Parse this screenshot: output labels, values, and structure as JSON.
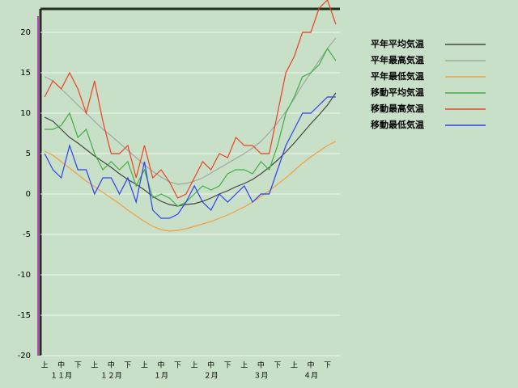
{
  "chart_data": {
    "type": "line",
    "categories": [
      "上",
      null,
      "中",
      null,
      "下",
      null,
      "上",
      null,
      "中",
      null,
      "下",
      null,
      "上",
      null,
      "中",
      null,
      "下",
      null,
      "上",
      null,
      "中",
      null,
      "下",
      null,
      "上",
      null,
      "中",
      null,
      "下",
      null,
      "上",
      null,
      "中",
      null,
      "下",
      null
    ],
    "months": [
      "１１月",
      "１２月",
      "１月",
      "２月",
      "３月",
      "４月"
    ],
    "ylim": [
      -20,
      23
    ],
    "yticks": [
      -20,
      -15,
      -10,
      -5,
      0,
      5,
      10,
      15,
      20
    ],
    "grid": true,
    "legend": "right",
    "series": [
      {
        "name": "平年平均気温",
        "color": "#404840",
        "values": [
          9.5,
          9,
          8,
          7,
          6.3,
          5.5,
          4.7,
          4,
          3.3,
          2.5,
          1.8,
          1.2,
          0.5,
          -0.3,
          -0.9,
          -1.3,
          -1.5,
          -1.3,
          -1.2,
          -0.9,
          -0.5,
          0,
          0.4,
          0.9,
          1.3,
          1.8,
          2.5,
          3.3,
          4.2,
          5.2,
          6.3,
          7.5,
          8.7,
          9.8,
          11,
          12.5
        ]
      },
      {
        "name": "平年最高気温",
        "color": "#a0a8a0",
        "values": [
          14.5,
          14,
          13,
          12,
          11,
          10,
          9,
          8,
          7.2,
          6.3,
          5.4,
          4.5,
          3.6,
          2.8,
          2.1,
          1.5,
          1.2,
          1.3,
          1.6,
          2,
          2.6,
          3.2,
          3.8,
          4.4,
          5,
          5.7,
          6.5,
          7.6,
          8.8,
          10.2,
          11.8,
          13.5,
          15,
          16.5,
          18,
          19.3
        ]
      },
      {
        "name": "平年最低気温",
        "color": "#f0a040",
        "values": [
          5.3,
          4.8,
          4,
          3.2,
          2.4,
          1.6,
          0.9,
          0.2,
          -0.5,
          -1.2,
          -2,
          -2.7,
          -3.4,
          -4,
          -4.4,
          -4.6,
          -4.5,
          -4.3,
          -4,
          -3.7,
          -3.4,
          -3,
          -2.6,
          -2.1,
          -1.6,
          -1,
          -0.3,
          0.4,
          1.2,
          2,
          2.9,
          3.8,
          4.6,
          5.3,
          6,
          6.5
        ]
      },
      {
        "name": "移動平均気温",
        "color": "#40b040",
        "values": [
          8,
          8,
          8.5,
          10,
          7,
          8,
          5,
          3,
          4,
          3,
          4,
          1,
          3,
          -0.5,
          0,
          -0.5,
          -1.5,
          -1,
          0,
          1,
          0.5,
          1,
          2.5,
          3,
          3,
          2.5,
          4,
          3,
          6,
          10,
          12,
          14.5,
          15,
          16,
          18,
          16.5
        ]
      },
      {
        "name": "移動最高気温",
        "color": "#f04020",
        "values": [
          12,
          14,
          13,
          15,
          13,
          10,
          14,
          9,
          5,
          5,
          6,
          2,
          6,
          2,
          3,
          1.5,
          -0.5,
          0,
          2,
          4,
          3,
          5,
          4.5,
          7,
          6,
          6,
          5,
          5,
          10,
          15,
          17,
          20,
          20,
          23,
          24,
          21
        ]
      },
      {
        "name": "移動最低気温",
        "color": "#3040f0",
        "values": [
          5,
          3,
          2,
          6,
          3,
          3,
          0,
          2,
          2,
          0,
          2,
          -1,
          4,
          -2,
          -3,
          -3,
          -2.5,
          -1,
          1,
          -1,
          -2,
          0,
          -1,
          0,
          1,
          -1,
          0,
          0,
          3,
          6,
          8,
          10,
          10,
          11,
          12,
          12
        ]
      }
    ]
  }
}
